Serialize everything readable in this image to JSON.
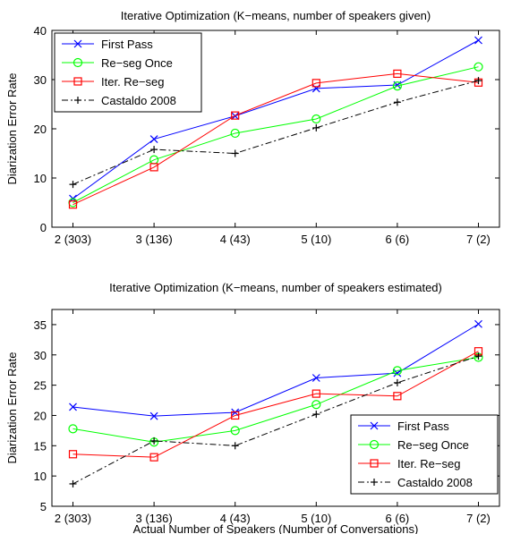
{
  "chart_data": [
    {
      "type": "line",
      "title": "Iterative Optimization (K−means, number of speakers given)",
      "xlabel": "",
      "ylabel": "Diarization Error Rate",
      "categories": [
        "2 (303)",
        "3 (136)",
        "4 (43)",
        "5 (10)",
        "6 (6)",
        "7 (2)"
      ],
      "ylim": [
        0,
        40
      ],
      "yticks": [
        "0",
        "10",
        "20",
        "30",
        "40"
      ],
      "grid": false,
      "legend_position": "top-left",
      "series": [
        {
          "name": "First Pass",
          "color": "#0000ff",
          "marker": "x",
          "dash": "solid",
          "values": [
            5.8,
            17.9,
            22.6,
            28.2,
            28.9,
            38.0
          ]
        },
        {
          "name": "Re−seg Once",
          "color": "#00ff00",
          "marker": "circle",
          "dash": "solid",
          "values": [
            5.0,
            13.7,
            19.1,
            22.0,
            28.7,
            32.6
          ]
        },
        {
          "name": "Iter. Re−seg",
          "color": "#ff0000",
          "marker": "square",
          "dash": "solid",
          "values": [
            4.6,
            12.2,
            22.7,
            29.3,
            31.2,
            29.4
          ]
        },
        {
          "name": "Castaldo 2008",
          "color": "#000000",
          "marker": "plus",
          "dash": "dashdot",
          "values": [
            8.7,
            15.8,
            15.0,
            20.2,
            25.4,
            29.8
          ]
        }
      ]
    },
    {
      "type": "line",
      "title": "Iterative Optimization (K−means, number of speakers estimated)",
      "xlabel": "Actual Number of Speakers (Number of Conversations)",
      "ylabel": "Diarization Error Rate",
      "categories": [
        "2 (303)",
        "3 (136)",
        "4 (43)",
        "5 (10)",
        "6 (6)",
        "7 (2)"
      ],
      "ylim": [
        5,
        37.5
      ],
      "yticks": [
        "5",
        "10",
        "15",
        "20",
        "25",
        "30",
        "35"
      ],
      "grid": false,
      "legend_position": "bottom-right",
      "series": [
        {
          "name": "First Pass",
          "color": "#0000ff",
          "marker": "x",
          "dash": "solid",
          "values": [
            21.4,
            19.9,
            20.5,
            26.2,
            27.0,
            35.1
          ]
        },
        {
          "name": "Re−seg Once",
          "color": "#00ff00",
          "marker": "circle",
          "dash": "solid",
          "values": [
            17.8,
            15.6,
            17.5,
            21.8,
            27.4,
            29.6
          ]
        },
        {
          "name": "Iter. Re−seg",
          "color": "#ff0000",
          "marker": "square",
          "dash": "solid",
          "values": [
            13.6,
            13.1,
            20.0,
            23.6,
            23.2,
            30.6
          ]
        },
        {
          "name": "Castaldo 2008",
          "color": "#000000",
          "marker": "plus",
          "dash": "dashdot",
          "values": [
            8.7,
            15.8,
            15.0,
            20.2,
            25.4,
            29.8
          ]
        }
      ]
    }
  ]
}
